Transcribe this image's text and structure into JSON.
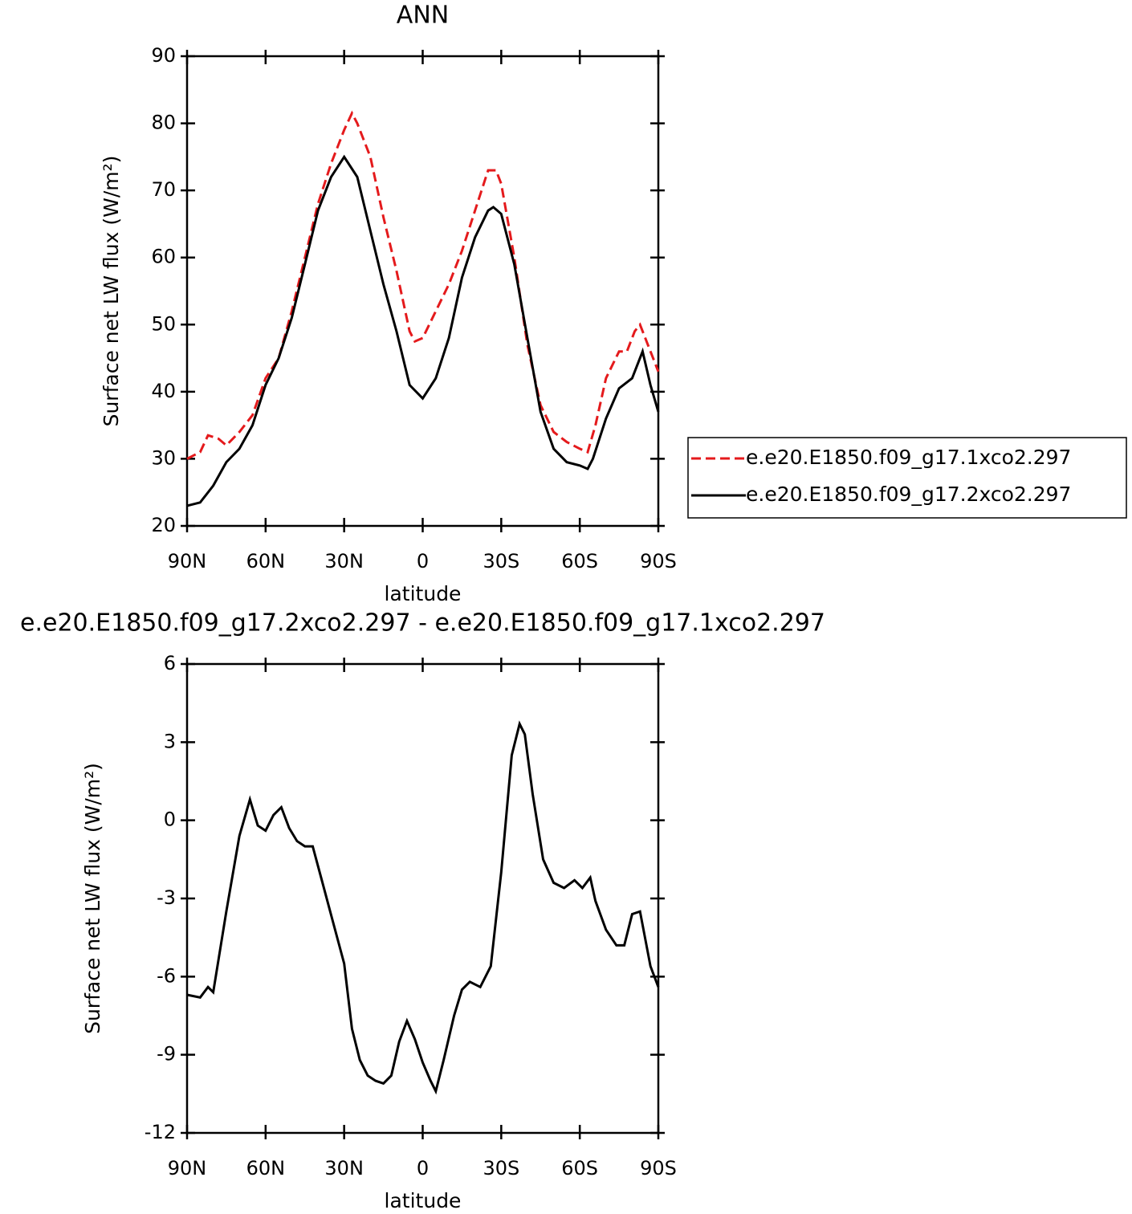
{
  "chart_data": [
    {
      "type": "line",
      "title": "ANN",
      "xlabel": "latitude",
      "ylabel": "Surface net LW flux (W/m²)",
      "xlim": [
        90,
        -90
      ],
      "xticks": [
        {
          "value": 90,
          "label": "90N"
        },
        {
          "value": 60,
          "label": "60N"
        },
        {
          "value": 30,
          "label": "30N"
        },
        0,
        {
          "value": -30,
          "label": "30S"
        },
        {
          "value": -60,
          "label": "60S"
        },
        {
          "value": -90,
          "label": "90S"
        }
      ],
      "ylim": [
        20,
        90
      ],
      "yticks": [
        20,
        30,
        40,
        50,
        60,
        70,
        80,
        90
      ],
      "series": [
        {
          "name": "e.e20.E1850.f09_g17.1xco2.297",
          "color": "#e41a1c",
          "linestyle": "dashed",
          "x": [
            90,
            85,
            82,
            78,
            75,
            70,
            65,
            60,
            55,
            50,
            45,
            40,
            35,
            30,
            27,
            25,
            20,
            15,
            10,
            5,
            3,
            0,
            -5,
            -10,
            -15,
            -20,
            -25,
            -28,
            -30,
            -35,
            -40,
            -45,
            -50,
            -55,
            -60,
            -63,
            -66,
            -70,
            -75,
            -78,
            -81,
            -83,
            -86,
            -90
          ],
          "values": [
            30,
            31,
            33.5,
            33,
            32,
            34,
            36.5,
            42,
            45,
            52,
            60,
            68,
            74,
            79,
            81.5,
            80,
            75,
            66,
            58,
            49,
            47.5,
            48,
            52,
            56,
            61,
            67,
            73,
            73,
            71,
            60,
            47,
            38,
            34,
            32.5,
            31.5,
            31,
            35,
            42,
            46,
            46,
            49,
            50,
            47,
            43
          ]
        },
        {
          "name": "e.e20.E1850.f09_g17.2xco2.297",
          "color": "#000000",
          "linestyle": "solid",
          "x": [
            90,
            85,
            80,
            75,
            70,
            65,
            60,
            55,
            50,
            45,
            40,
            35,
            30,
            25,
            20,
            15,
            10,
            5,
            0,
            -5,
            -10,
            -15,
            -20,
            -25,
            -27,
            -30,
            -35,
            -40,
            -45,
            -50,
            -55,
            -60,
            -63,
            -65,
            -70,
            -75,
            -80,
            -84,
            -87,
            -90
          ],
          "values": [
            23,
            23.5,
            26,
            29.5,
            31.5,
            35,
            41,
            45,
            51,
            59,
            67,
            72,
            75,
            72,
            64,
            56,
            49,
            41,
            39,
            42,
            48,
            57,
            63,
            67,
            67.5,
            66.5,
            59,
            48,
            37,
            31.5,
            29.5,
            29,
            28.5,
            30,
            36,
            40.5,
            42,
            46,
            41,
            37
          ]
        }
      ]
    },
    {
      "type": "line",
      "title": "e.e20.E1850.f09_g17.2xco2.297 - e.e20.E1850.f09_g17.1xco2.297",
      "xlabel": "latitude",
      "ylabel": "Surface net LW flux (W/m²)",
      "xlim": [
        90,
        -90
      ],
      "xticks": [
        {
          "value": 90,
          "label": "90N"
        },
        {
          "value": 60,
          "label": "60N"
        },
        {
          "value": 30,
          "label": "30N"
        },
        0,
        {
          "value": -30,
          "label": "30S"
        },
        {
          "value": -60,
          "label": "60S"
        },
        {
          "value": -90,
          "label": "90S"
        }
      ],
      "ylim": [
        -12,
        6
      ],
      "yticks": [
        -12,
        -9,
        -6,
        -3,
        0,
        3,
        6
      ],
      "series": [
        {
          "color": "#000000",
          "linestyle": "solid",
          "x": [
            90,
            85,
            82,
            80,
            75,
            70,
            66,
            63,
            60,
            57,
            54,
            51,
            48,
            45,
            42,
            38,
            34,
            30,
            27,
            24,
            21,
            18,
            15,
            12,
            9,
            6,
            3,
            0,
            -3,
            -5,
            -8,
            -12,
            -15,
            -18,
            -22,
            -26,
            -30,
            -34,
            -37,
            -39,
            -42,
            -46,
            -50,
            -54,
            -58,
            -61,
            -64,
            -66,
            -70,
            -74,
            -77,
            -80,
            -83,
            -87,
            -90
          ],
          "values": [
            -6.7,
            -6.8,
            -6.4,
            -6.6,
            -3.5,
            -0.6,
            0.8,
            -0.2,
            -0.4,
            0.2,
            0.5,
            -0.3,
            -0.8,
            -1.0,
            -1.0,
            -2.5,
            -4.0,
            -5.5,
            -8.0,
            -9.2,
            -9.8,
            -10.0,
            -10.1,
            -9.8,
            -8.5,
            -7.7,
            -8.4,
            -9.3,
            -10.0,
            -10.4,
            -9.2,
            -7.5,
            -6.5,
            -6.2,
            -6.4,
            -5.6,
            -2.0,
            2.5,
            3.7,
            3.3,
            1.0,
            -1.5,
            -2.4,
            -2.6,
            -2.3,
            -2.6,
            -2.2,
            -3.1,
            -4.2,
            -4.8,
            -4.8,
            -3.6,
            -3.5,
            -5.6,
            -6.4
          ]
        }
      ]
    }
  ]
}
